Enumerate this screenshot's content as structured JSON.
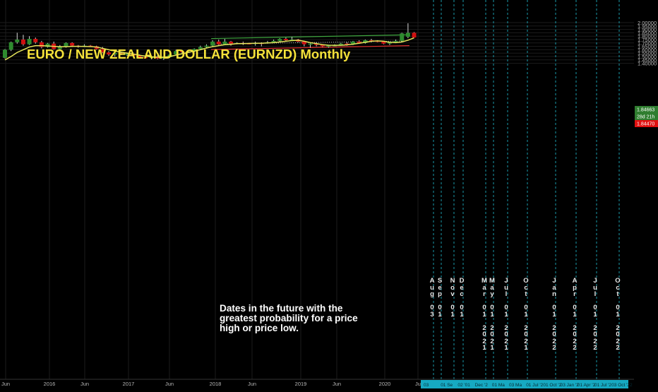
{
  "title": "EURO / NEW ZEALAND DOLLAR (EURNZD) Monthly",
  "note": "Dates in the future with the greatest probability for a price high or price low.",
  "colors": {
    "up": "#2e8b2e",
    "down": "#d01010",
    "ma": "#e6e65c",
    "upper_channel": "#3fa53f",
    "lower_channel": "#e03030",
    "forecast_line": "#1fb5c8"
  },
  "chart_data": {
    "type": "candlestick",
    "timeframe": "Monthly",
    "y_axis": {
      "range": [
        1.37,
        2.02
      ],
      "ticks": [
        "1.40000",
        "1.45000",
        "1.50000",
        "1.55000",
        "1.60000",
        "1.65000",
        "1.70000",
        "1.75000",
        "1.80000",
        "1.85000",
        "1.90000",
        "1.95000",
        "2.00000"
      ]
    },
    "x_axis": {
      "ticks": [
        "Jun",
        "2016",
        "Jun",
        "2017",
        "Jun",
        "2018",
        "Jun",
        "2019",
        "Jun",
        "2020",
        "Ju"
      ]
    },
    "price_labels": {
      "last": "1.84663",
      "countdown": "28d 21h",
      "bid": "1.84470"
    },
    "candles": [
      {
        "o": 1.48,
        "h": 1.61,
        "l": 1.47,
        "c": 1.6
      },
      {
        "o": 1.6,
        "h": 1.72,
        "l": 1.58,
        "c": 1.71
      },
      {
        "o": 1.71,
        "h": 1.85,
        "l": 1.69,
        "c": 1.75
      },
      {
        "o": 1.75,
        "h": 1.82,
        "l": 1.66,
        "c": 1.68
      },
      {
        "o": 1.68,
        "h": 1.8,
        "l": 1.67,
        "c": 1.76
      },
      {
        "o": 1.76,
        "h": 1.78,
        "l": 1.69,
        "c": 1.71
      },
      {
        "o": 1.71,
        "h": 1.73,
        "l": 1.62,
        "c": 1.64
      },
      {
        "o": 1.64,
        "h": 1.7,
        "l": 1.63,
        "c": 1.69
      },
      {
        "o": 1.69,
        "h": 1.72,
        "l": 1.6,
        "c": 1.61
      },
      {
        "o": 1.61,
        "h": 1.67,
        "l": 1.58,
        "c": 1.65
      },
      {
        "o": 1.65,
        "h": 1.71,
        "l": 1.63,
        "c": 1.7
      },
      {
        "o": 1.7,
        "h": 1.71,
        "l": 1.64,
        "c": 1.66
      },
      {
        "o": 1.66,
        "h": 1.67,
        "l": 1.63,
        "c": 1.65
      },
      {
        "o": 1.65,
        "h": 1.68,
        "l": 1.64,
        "c": 1.66
      },
      {
        "o": 1.66,
        "h": 1.67,
        "l": 1.64,
        "c": 1.65
      },
      {
        "o": 1.65,
        "h": 1.66,
        "l": 1.6,
        "c": 1.61
      },
      {
        "o": 1.61,
        "h": 1.64,
        "l": 1.55,
        "c": 1.56
      },
      {
        "o": 1.56,
        "h": 1.58,
        "l": 1.51,
        "c": 1.53
      },
      {
        "o": 1.53,
        "h": 1.57,
        "l": 1.5,
        "c": 1.55
      },
      {
        "o": 1.55,
        "h": 1.57,
        "l": 1.52,
        "c": 1.53
      },
      {
        "o": 1.53,
        "h": 1.56,
        "l": 1.51,
        "c": 1.54
      },
      {
        "o": 1.54,
        "h": 1.56,
        "l": 1.5,
        "c": 1.51
      },
      {
        "o": 1.51,
        "h": 1.53,
        "l": 1.48,
        "c": 1.49
      },
      {
        "o": 1.49,
        "h": 1.51,
        "l": 1.47,
        "c": 1.48
      },
      {
        "o": 1.48,
        "h": 1.51,
        "l": 1.46,
        "c": 1.5
      },
      {
        "o": 1.5,
        "h": 1.52,
        "l": 1.46,
        "c": 1.47
      },
      {
        "o": 1.47,
        "h": 1.5,
        "l": 1.45,
        "c": 1.49
      },
      {
        "o": 1.49,
        "h": 1.54,
        "l": 1.48,
        "c": 1.53
      },
      {
        "o": 1.53,
        "h": 1.6,
        "l": 1.52,
        "c": 1.58
      },
      {
        "o": 1.58,
        "h": 1.59,
        "l": 1.55,
        "c": 1.57
      },
      {
        "o": 1.57,
        "h": 1.59,
        "l": 1.56,
        "c": 1.575
      },
      {
        "o": 1.575,
        "h": 1.62,
        "l": 1.56,
        "c": 1.61
      },
      {
        "o": 1.61,
        "h": 1.66,
        "l": 1.6,
        "c": 1.64
      },
      {
        "o": 1.64,
        "h": 1.68,
        "l": 1.63,
        "c": 1.66
      },
      {
        "o": 1.66,
        "h": 1.74,
        "l": 1.65,
        "c": 1.72
      },
      {
        "o": 1.72,
        "h": 1.75,
        "l": 1.67,
        "c": 1.68
      },
      {
        "o": 1.68,
        "h": 1.76,
        "l": 1.67,
        "c": 1.72
      },
      {
        "o": 1.72,
        "h": 1.73,
        "l": 1.66,
        "c": 1.69
      },
      {
        "o": 1.69,
        "h": 1.71,
        "l": 1.68,
        "c": 1.7
      },
      {
        "o": 1.7,
        "h": 1.72,
        "l": 1.67,
        "c": 1.695
      },
      {
        "o": 1.695,
        "h": 1.7,
        "l": 1.68,
        "c": 1.69
      },
      {
        "o": 1.69,
        "h": 1.72,
        "l": 1.66,
        "c": 1.7
      },
      {
        "o": 1.7,
        "h": 1.71,
        "l": 1.65,
        "c": 1.695
      },
      {
        "o": 1.695,
        "h": 1.73,
        "l": 1.69,
        "c": 1.71
      },
      {
        "o": 1.71,
        "h": 1.75,
        "l": 1.7,
        "c": 1.73
      },
      {
        "o": 1.73,
        "h": 1.77,
        "l": 1.71,
        "c": 1.76
      },
      {
        "o": 1.76,
        "h": 1.78,
        "l": 1.72,
        "c": 1.74
      },
      {
        "o": 1.74,
        "h": 1.79,
        "l": 1.73,
        "c": 1.75
      },
      {
        "o": 1.75,
        "h": 1.76,
        "l": 1.71,
        "c": 1.72
      },
      {
        "o": 1.72,
        "h": 1.73,
        "l": 1.65,
        "c": 1.68
      },
      {
        "o": 1.68,
        "h": 1.7,
        "l": 1.63,
        "c": 1.69
      },
      {
        "o": 1.69,
        "h": 1.71,
        "l": 1.65,
        "c": 1.67
      },
      {
        "o": 1.67,
        "h": 1.68,
        "l": 1.64,
        "c": 1.65
      },
      {
        "o": 1.65,
        "h": 1.67,
        "l": 1.63,
        "c": 1.66
      },
      {
        "o": 1.66,
        "h": 1.68,
        "l": 1.65,
        "c": 1.665
      },
      {
        "o": 1.665,
        "h": 1.7,
        "l": 1.66,
        "c": 1.69
      },
      {
        "o": 1.69,
        "h": 1.71,
        "l": 1.66,
        "c": 1.68
      },
      {
        "o": 1.68,
        "h": 1.73,
        "l": 1.67,
        "c": 1.72
      },
      {
        "o": 1.72,
        "h": 1.74,
        "l": 1.69,
        "c": 1.7
      },
      {
        "o": 1.7,
        "h": 1.75,
        "l": 1.69,
        "c": 1.74
      },
      {
        "o": 1.74,
        "h": 1.76,
        "l": 1.71,
        "c": 1.73
      },
      {
        "o": 1.73,
        "h": 1.74,
        "l": 1.71,
        "c": 1.72
      },
      {
        "o": 1.72,
        "h": 1.73,
        "l": 1.68,
        "c": 1.69
      },
      {
        "o": 1.69,
        "h": 1.72,
        "l": 1.67,
        "c": 1.715
      },
      {
        "o": 1.715,
        "h": 1.75,
        "l": 1.71,
        "c": 1.73
      },
      {
        "o": 1.73,
        "h": 1.85,
        "l": 1.72,
        "c": 1.84
      },
      {
        "o": 1.79,
        "h": 1.99,
        "l": 1.77,
        "c": 1.85
      },
      {
        "o": 1.85,
        "h": 1.86,
        "l": 1.78,
        "c": 1.78
      }
    ],
    "ma_line": [
      1.45,
      1.5,
      1.56,
      1.6,
      1.64,
      1.66,
      1.66,
      1.655,
      1.65,
      1.645,
      1.645,
      1.65,
      1.65,
      1.648,
      1.646,
      1.64,
      1.62,
      1.6,
      1.58,
      1.565,
      1.55,
      1.535,
      1.52,
      1.505,
      1.495,
      1.49,
      1.49,
      1.5,
      1.52,
      1.54,
      1.56,
      1.58,
      1.6,
      1.625,
      1.645,
      1.66,
      1.675,
      1.68,
      1.69,
      1.69,
      1.693,
      1.695,
      1.695,
      1.7,
      1.705,
      1.715,
      1.725,
      1.735,
      1.74,
      1.725,
      1.705,
      1.69,
      1.675,
      1.667,
      1.665,
      1.665,
      1.672,
      1.682,
      1.695,
      1.71,
      1.725,
      1.73,
      1.725,
      1.71,
      1.705,
      1.715,
      1.74,
      1.775
    ],
    "upper_channel": {
      "start": [
        34,
        1.765
      ],
      "end": [
        66,
        1.82
      ]
    },
    "lower_channel": {
      "start": [
        34,
        1.603
      ],
      "end": [
        66,
        1.66
      ]
    },
    "mid_line": {
      "start": [
        34,
        1.683
      ],
      "end": [
        65,
        1.728
      ]
    },
    "forecast_dates": [
      {
        "label": "Aug 03",
        "axis_label": "03"
      },
      {
        "label": "Sep 01",
        "axis_label": "01 Se"
      },
      {
        "label": "Nov 01",
        "axis_label": "02 '01"
      },
      {
        "label": "Dec 01",
        "axis_label": "Dec '2"
      },
      {
        "label": "Mar 01 2021",
        "axis_label": "01 Ma"
      },
      {
        "label": "May 01 2021",
        "axis_label": "03 Ma"
      },
      {
        "label": "Jul 01 2021",
        "axis_label": "01 Jul '2"
      },
      {
        "label": "Oct 01 2021",
        "axis_label": "01 Oct '2"
      },
      {
        "label": "Jan 01 2022",
        "axis_label": "03 Jan '2"
      },
      {
        "label": "Apr 01 2022",
        "axis_label": "01 Apr '2"
      },
      {
        "label": "Jul 01 2022",
        "axis_label": "01 Jul '2"
      },
      {
        "label": "Oct 01 2022",
        "axis_label": "03 Oct '22"
      }
    ]
  },
  "vertical_labels": [
    {
      "top": "Aug",
      "mid": "03",
      "bottom": ""
    },
    {
      "top": "Sep",
      "mid": "01",
      "bottom": ""
    },
    {
      "top": "Nov",
      "mid": "01",
      "bottom": ""
    },
    {
      "top": "Dec",
      "mid": "01",
      "bottom": ""
    },
    {
      "top": "Mar",
      "mid": "01",
      "bottom": "2021"
    },
    {
      "top": "May",
      "mid": "01",
      "bottom": "2021"
    },
    {
      "top": "Jul",
      "mid": "01",
      "bottom": "2021"
    },
    {
      "top": "Oct",
      "mid": "01",
      "bottom": "2021"
    },
    {
      "top": "Jan",
      "mid": "01",
      "bottom": "2022"
    },
    {
      "top": "Apr",
      "mid": "01",
      "bottom": "2022"
    },
    {
      "top": "Jul",
      "mid": "01",
      "bottom": "2022"
    },
    {
      "top": "Oct",
      "mid": "01",
      "bottom": "2022"
    }
  ]
}
